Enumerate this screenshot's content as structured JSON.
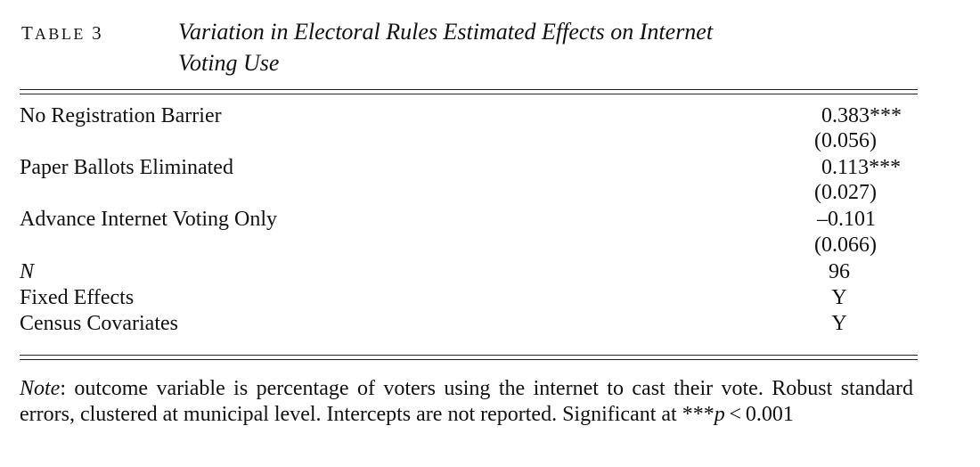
{
  "caption": {
    "label_prefix": "T",
    "label_small": "ABLE",
    "label_number": "3",
    "title_line1": "Variation in Electoral Rules Estimated Effects on Internet",
    "title_line2": "Voting Use"
  },
  "rows": [
    {
      "label": "No Registration Barrier",
      "estimate": "0.383***",
      "se": "(0.056)"
    },
    {
      "label": "Paper Ballots Eliminated",
      "estimate": "0.113***",
      "se": "(0.027)"
    },
    {
      "label": "Advance Internet Voting Only",
      "estimate": "–0.101",
      "se": "(0.066)"
    }
  ],
  "summary": [
    {
      "label": "N",
      "value": "96"
    },
    {
      "label": "Fixed Effects",
      "value": "Y"
    },
    {
      "label": "Census Covariates",
      "value": "Y"
    }
  ],
  "note": {
    "label": "Note",
    "text": ": outcome variable is percentage of voters using the internet to cast their vote. Robust standard errors, clustered at municipal level. Intercepts are not reported. Significant at ***",
    "p_symbol": "p",
    "threshold": " < 0.001"
  }
}
